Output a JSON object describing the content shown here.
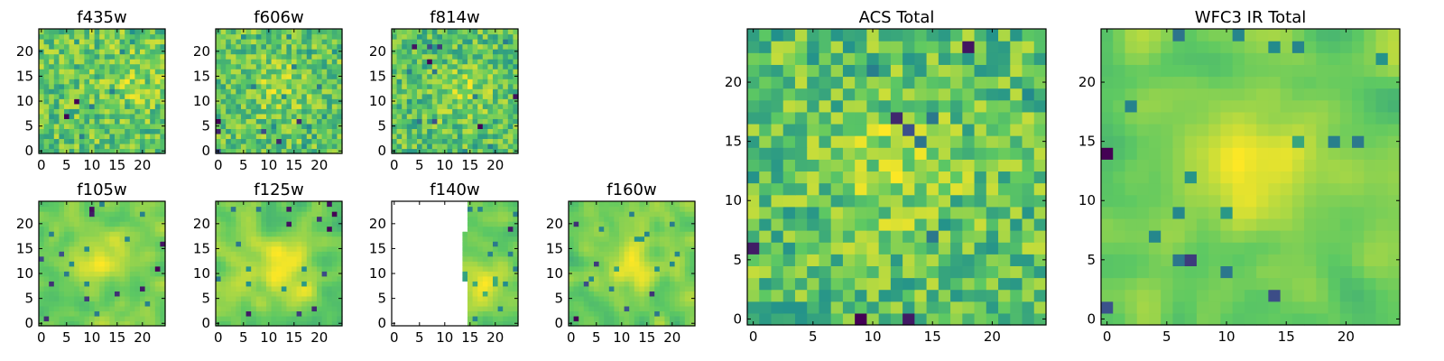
{
  "figure": {
    "colormap": "viridis",
    "colormap_stops": [
      "#440154",
      "#3b528b",
      "#21908c",
      "#5ec962",
      "#fde725"
    ],
    "blank_color": "#ffffff"
  },
  "chart_data": [
    {
      "type": "heatmap",
      "title": "f435w",
      "grid_size": 25,
      "xticks": [
        "0",
        "5",
        "10",
        "15",
        "20"
      ],
      "yticks": [
        "0",
        "5",
        "10",
        "15",
        "20"
      ],
      "xlim": [
        0,
        25
      ],
      "ylim": [
        0,
        25
      ],
      "texture": "noisy",
      "seed": 11,
      "peak": [
        18,
        15
      ],
      "blank_xmax": 0
    },
    {
      "type": "heatmap",
      "title": "f606w",
      "grid_size": 25,
      "xticks": [
        "0",
        "5",
        "10",
        "15",
        "20"
      ],
      "yticks": [
        "0",
        "5",
        "10",
        "15",
        "20"
      ],
      "xlim": [
        0,
        25
      ],
      "ylim": [
        0,
        25
      ],
      "texture": "noisy",
      "seed": 23,
      "peak": [
        12,
        13
      ],
      "blank_xmax": 0
    },
    {
      "type": "heatmap",
      "title": "f814w",
      "grid_size": 25,
      "xticks": [
        "0",
        "5",
        "10",
        "15",
        "20"
      ],
      "yticks": [
        "0",
        "5",
        "10",
        "15",
        "20"
      ],
      "xlim": [
        0,
        25
      ],
      "ylim": [
        0,
        25
      ],
      "texture": "noisy",
      "seed": 37,
      "peak": [
        14,
        12
      ],
      "blank_xmax": 0
    },
    {
      "type": "heatmap",
      "title": "f105w",
      "grid_size": 25,
      "xticks": [
        "0",
        "5",
        "10",
        "15",
        "20"
      ],
      "yticks": [
        "0",
        "5",
        "10",
        "15",
        "20"
      ],
      "xlim": [
        0,
        25
      ],
      "ylim": [
        0,
        25
      ],
      "texture": "smooth",
      "seed": 41,
      "peak": [
        12,
        13
      ],
      "blank_xmax": 0
    },
    {
      "type": "heatmap",
      "title": "f125w",
      "grid_size": 25,
      "xticks": [
        "0",
        "5",
        "10",
        "15",
        "20"
      ],
      "yticks": [
        "0",
        "5",
        "10",
        "15",
        "20"
      ],
      "xlim": [
        0,
        25
      ],
      "ylim": [
        0,
        25
      ],
      "texture": "smooth",
      "seed": 53,
      "peak": [
        13,
        11
      ],
      "blank_xmax": 0
    },
    {
      "type": "heatmap",
      "title": "f140w",
      "grid_size": 25,
      "xticks": [
        "0",
        "5",
        "10",
        "15",
        "20"
      ],
      "yticks": [
        "0",
        "5",
        "10",
        "15",
        "20"
      ],
      "xlim": [
        0,
        25
      ],
      "ylim": [
        0,
        25
      ],
      "texture": "smooth",
      "seed": 67,
      "peak": [
        18,
        8
      ],
      "blank_xmax": 14
    },
    {
      "type": "heatmap",
      "title": "f160w",
      "grid_size": 25,
      "xticks": [
        "0",
        "5",
        "10",
        "15",
        "20"
      ],
      "yticks": [
        "0",
        "5",
        "10",
        "15",
        "20"
      ],
      "xlim": [
        0,
        25
      ],
      "ylim": [
        0,
        25
      ],
      "texture": "smooth",
      "seed": 79,
      "peak": [
        12,
        12
      ],
      "blank_xmax": 0
    },
    {
      "type": "heatmap",
      "title": "ACS Total",
      "grid_size": 25,
      "xticks": [
        "0",
        "5",
        "10",
        "15",
        "20"
      ],
      "yticks": [
        "0",
        "5",
        "10",
        "15",
        "20"
      ],
      "xlim": [
        0,
        25
      ],
      "ylim": [
        0,
        25
      ],
      "texture": "noisy",
      "seed": 97,
      "peak": [
        12,
        13
      ],
      "blank_xmax": 0
    },
    {
      "type": "heatmap",
      "title": "WFC3 IR Total",
      "grid_size": 25,
      "xticks": [
        "0",
        "5",
        "10",
        "15",
        "20"
      ],
      "yticks": [
        "0",
        "5",
        "10",
        "15",
        "20"
      ],
      "xlim": [
        0,
        25
      ],
      "ylim": [
        0,
        25
      ],
      "texture": "smooth",
      "seed": 113,
      "peak": [
        12,
        13
      ],
      "blank_xmax": 0
    }
  ]
}
